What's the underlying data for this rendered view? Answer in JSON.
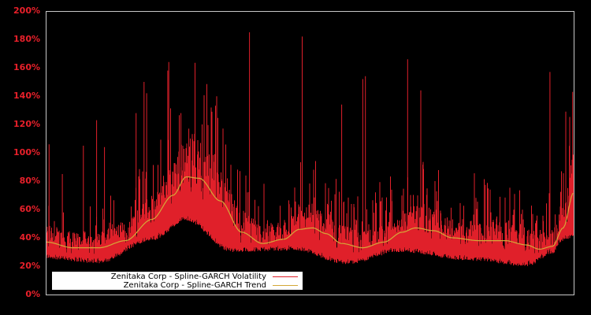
{
  "chart_data": {
    "type": "line",
    "title": "",
    "xlabel": "",
    "ylabel": "",
    "ylim": [
      0,
      200
    ],
    "y_ticks": [
      "0%",
      "20%",
      "40%",
      "60%",
      "80%",
      "100%",
      "120%",
      "140%",
      "160%",
      "180%",
      "200%"
    ],
    "x_ticks": [],
    "grid": false,
    "legend_position": "lower-left",
    "background": "#000000",
    "axis_color": "#c8c8c8",
    "tick_color": "#e8202a",
    "series": [
      {
        "name": "Zenitaka Corp - Spline-GARCH Volatility",
        "color": "#e0202a",
        "description": "daily volatility, noisy series with floor following trend and many spikes",
        "notable_spikes_pct": [
          {
            "x_frac": 0.005,
            "value": 106
          },
          {
            "x_frac": 0.03,
            "value": 85
          },
          {
            "x_frac": 0.07,
            "value": 105
          },
          {
            "x_frac": 0.095,
            "value": 123
          },
          {
            "x_frac": 0.11,
            "value": 104
          },
          {
            "x_frac": 0.17,
            "value": 128
          },
          {
            "x_frac": 0.185,
            "value": 150
          },
          {
            "x_frac": 0.19,
            "value": 142
          },
          {
            "x_frac": 0.23,
            "value": 158
          },
          {
            "x_frac": 0.232,
            "value": 164
          },
          {
            "x_frac": 0.255,
            "value": 128
          },
          {
            "x_frac": 0.27,
            "value": 117
          },
          {
            "x_frac": 0.385,
            "value": 185
          },
          {
            "x_frac": 0.485,
            "value": 182
          },
          {
            "x_frac": 0.56,
            "value": 134
          },
          {
            "x_frac": 0.6,
            "value": 152
          },
          {
            "x_frac": 0.605,
            "value": 154
          },
          {
            "x_frac": 0.685,
            "value": 166
          },
          {
            "x_frac": 0.71,
            "value": 144
          },
          {
            "x_frac": 0.955,
            "value": 157
          },
          {
            "x_frac": 0.985,
            "value": 129
          },
          {
            "x_frac": 0.998,
            "value": 143
          }
        ],
        "floor_pct": [
          {
            "x_frac": 0.0,
            "value": 25
          },
          {
            "x_frac": 0.1,
            "value": 22
          },
          {
            "x_frac": 0.2,
            "value": 38
          },
          {
            "x_frac": 0.265,
            "value": 52
          },
          {
            "x_frac": 0.35,
            "value": 30
          },
          {
            "x_frac": 0.47,
            "value": 31
          },
          {
            "x_frac": 0.57,
            "value": 21
          },
          {
            "x_frac": 0.67,
            "value": 30
          },
          {
            "x_frac": 0.8,
            "value": 24
          },
          {
            "x_frac": 0.91,
            "value": 20
          },
          {
            "x_frac": 1.0,
            "value": 40
          }
        ]
      },
      {
        "name": "Zenitaka Corp - Spline-GARCH Trend",
        "color": "#d4a838",
        "points_pct": [
          {
            "x_frac": 0.0,
            "value": 37
          },
          {
            "x_frac": 0.05,
            "value": 33
          },
          {
            "x_frac": 0.1,
            "value": 33
          },
          {
            "x_frac": 0.15,
            "value": 38
          },
          {
            "x_frac": 0.2,
            "value": 53
          },
          {
            "x_frac": 0.24,
            "value": 70
          },
          {
            "x_frac": 0.265,
            "value": 83
          },
          {
            "x_frac": 0.29,
            "value": 82
          },
          {
            "x_frac": 0.33,
            "value": 66
          },
          {
            "x_frac": 0.37,
            "value": 44
          },
          {
            "x_frac": 0.41,
            "value": 36
          },
          {
            "x_frac": 0.45,
            "value": 39
          },
          {
            "x_frac": 0.48,
            "value": 46
          },
          {
            "x_frac": 0.505,
            "value": 47
          },
          {
            "x_frac": 0.53,
            "value": 43
          },
          {
            "x_frac": 0.56,
            "value": 36
          },
          {
            "x_frac": 0.6,
            "value": 33
          },
          {
            "x_frac": 0.64,
            "value": 37
          },
          {
            "x_frac": 0.675,
            "value": 44
          },
          {
            "x_frac": 0.7,
            "value": 47
          },
          {
            "x_frac": 0.735,
            "value": 45
          },
          {
            "x_frac": 0.77,
            "value": 40
          },
          {
            "x_frac": 0.82,
            "value": 38
          },
          {
            "x_frac": 0.87,
            "value": 38
          },
          {
            "x_frac": 0.91,
            "value": 35
          },
          {
            "x_frac": 0.935,
            "value": 32
          },
          {
            "x_frac": 0.96,
            "value": 34
          },
          {
            "x_frac": 0.98,
            "value": 47
          },
          {
            "x_frac": 1.0,
            "value": 72
          }
        ]
      }
    ]
  },
  "legend": {
    "items": [
      {
        "label": "Zenitaka Corp - Spline-GARCH Volatility",
        "color": "#e0202a"
      },
      {
        "label": "Zenitaka Corp - Spline-GARCH Trend",
        "color": "#d4a838"
      }
    ]
  }
}
